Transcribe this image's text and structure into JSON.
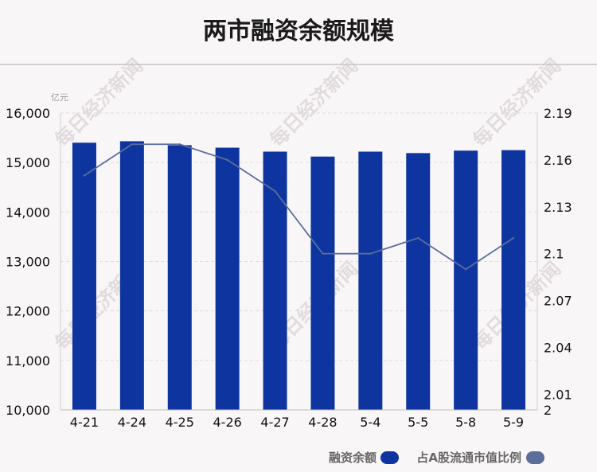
{
  "chart_data": {
    "type": "bar",
    "title": "两市融资余额规模",
    "y_unit_label": "亿元",
    "categories": [
      "4-21",
      "4-24",
      "4-25",
      "4-26",
      "4-27",
      "4-28",
      "5-4",
      "5-5",
      "5-8",
      "5-9"
    ],
    "series": [
      {
        "name": "融资余额",
        "type": "bar",
        "axis": "left",
        "color": "#0e34a0",
        "values": [
          15400,
          15430,
          15350,
          15300,
          15220,
          15120,
          15220,
          15190,
          15240,
          15250
        ]
      },
      {
        "name": "占A股流通市值比例",
        "type": "line",
        "axis": "right",
        "color": "#5b6e9c",
        "values": [
          2.15,
          2.17,
          2.17,
          2.16,
          2.14,
          2.1,
          2.1,
          2.11,
          2.09,
          2.11
        ]
      }
    ],
    "ylim_left": [
      10000,
      16000
    ],
    "ylim_right": [
      2,
      2.19
    ],
    "yticks_left": [
      "10,000",
      "11,000",
      "12,000",
      "13,000",
      "14,000",
      "15,000",
      "16,000"
    ],
    "yticks_right": [
      "2",
      "2.01",
      "2.04",
      "2.07",
      "2.1",
      "2.13",
      "2.16",
      "2.19"
    ],
    "yticks_right_values": [
      2,
      2.01,
      2.04,
      2.07,
      2.1,
      2.13,
      2.16,
      2.19
    ],
    "grid": true,
    "legend_position": "bottom-right",
    "watermark": "每日经济新闻"
  }
}
